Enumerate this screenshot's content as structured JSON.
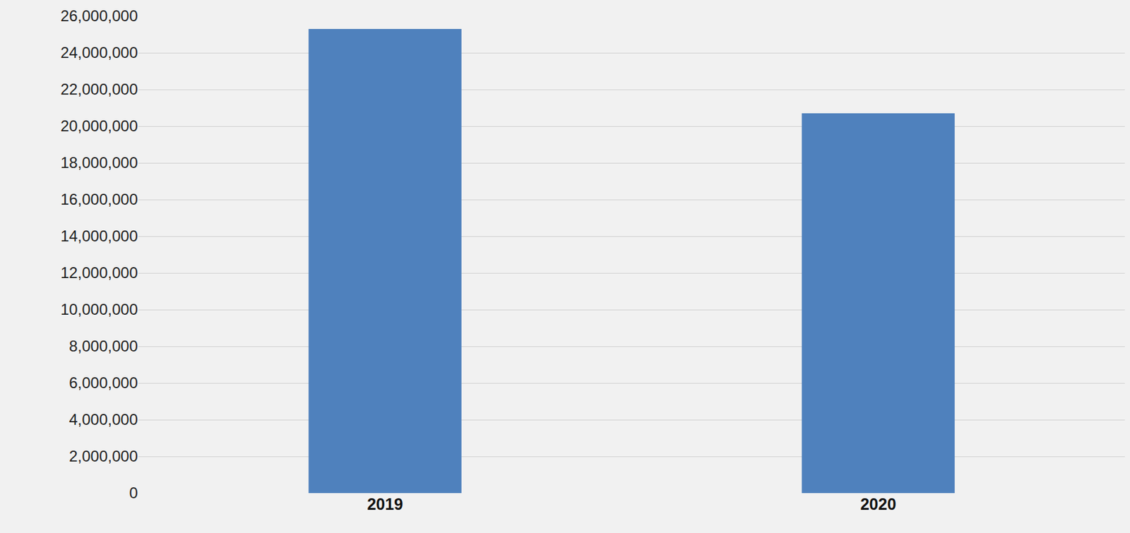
{
  "chart_data": {
    "type": "bar",
    "categories": [
      "2019",
      "2020"
    ],
    "values": [
      25300000,
      20700000
    ],
    "color": "#4f81bd",
    "ylim": [
      0,
      26000000
    ],
    "yticks": [
      0,
      {
        "value": 2000000,
        "label": "2,000,000"
      },
      {
        "value": 4000000,
        "label": "4,000,000"
      },
      {
        "value": 6000000,
        "label": "6,000,000"
      },
      {
        "value": 8000000,
        "label": "8,000,000"
      },
      {
        "value": 10000000,
        "label": "10,000,000"
      },
      {
        "value": 12000000,
        "label": "12,000,000"
      },
      {
        "value": 14000000,
        "label": "14,000,000"
      },
      {
        "value": 16000000,
        "label": "16,000,000"
      },
      {
        "value": 18000000,
        "label": "18,000,000"
      },
      {
        "value": 20000000,
        "label": "20,000,000"
      },
      {
        "value": 22000000,
        "label": "22,000,000"
      },
      {
        "value": 24000000,
        "label": "24,000,000"
      },
      {
        "value": 26000000,
        "label": "26,000,000"
      }
    ],
    "grid": true
  }
}
